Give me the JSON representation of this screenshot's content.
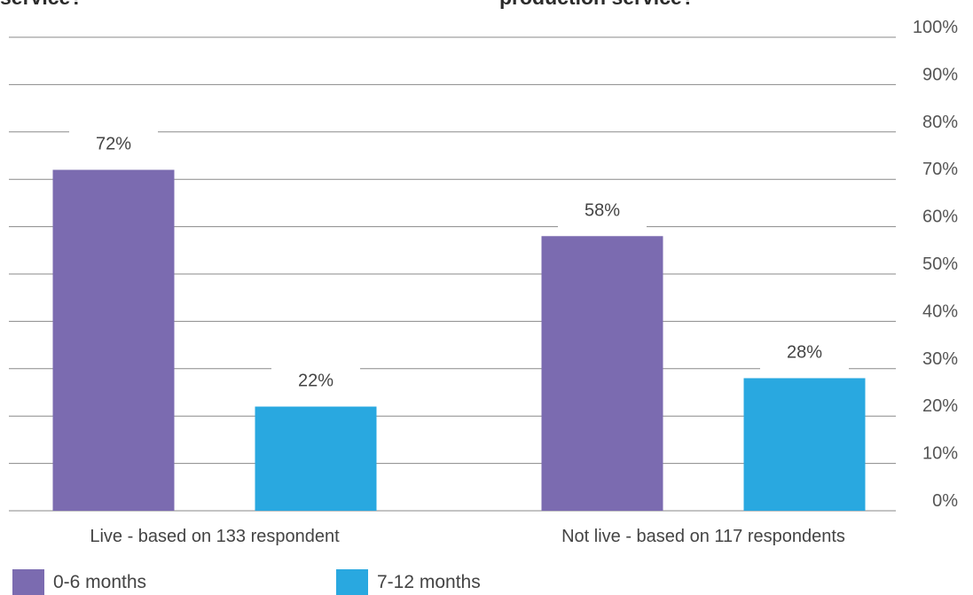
{
  "titles": {
    "left": "service?",
    "right": "production service?"
  },
  "chart_data": {
    "type": "bar",
    "categories": [
      "Live - based on 133 respondent",
      "Not live - based on 117 respondents"
    ],
    "series": [
      {
        "name": "0-6 months",
        "values": [
          72,
          58
        ],
        "color": "#7B6BB0"
      },
      {
        "name": "7-12 months",
        "values": [
          22,
          28
        ],
        "color": "#29A8E0"
      }
    ],
    "data_labels": [
      [
        "72%",
        "58%"
      ],
      [
        "22%",
        "28%"
      ]
    ],
    "ylim": [
      0,
      100
    ],
    "yticks": [
      "0%",
      "10%",
      "20%",
      "30%",
      "40%",
      "50%",
      "60%",
      "70%",
      "80%",
      "90%",
      "100%"
    ],
    "y_axis_position": "right",
    "grid": true,
    "legend_position": "bottom-left"
  }
}
